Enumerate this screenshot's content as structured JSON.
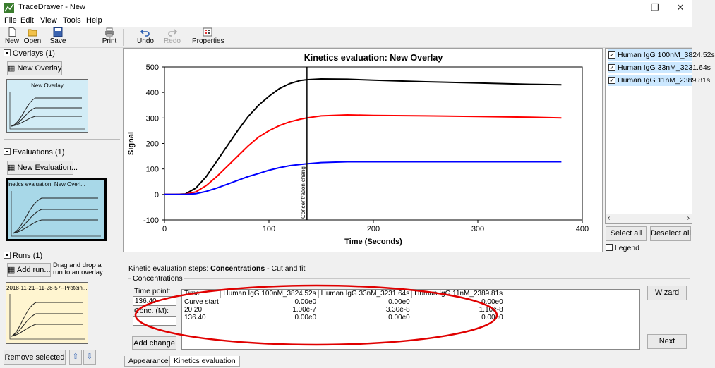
{
  "window": {
    "title": "TraceDrawer - New"
  },
  "menu": [
    "File",
    "Edit",
    "View",
    "Tools",
    "Help"
  ],
  "toolbar": {
    "new": "New",
    "open": "Open",
    "save": "Save",
    "print": "Print",
    "undo": "Undo",
    "redo": "Redo",
    "properties": "Properties"
  },
  "overlays": {
    "header": "Overlays (1)",
    "button": "New Overlay",
    "thumb_label": "New Overlay"
  },
  "evaluations": {
    "header": "Evaluations (1)",
    "button": "New Evaluation...",
    "thumb_label": "inetics evaluation: New Overl..."
  },
  "runs": {
    "header": "Runs (1)",
    "button": "Add run...",
    "hint_line1": "Drag and drop a",
    "hint_line2": "run to an overlay",
    "thumb_label": "2018-11-21--11-28-57--Protein..."
  },
  "bottom_left": {
    "remove": "Remove selected"
  },
  "right_panel": {
    "items": [
      {
        "label": "Human IgG 100nM_3824.52s",
        "checked": true
      },
      {
        "label": "Human IgG 33nM_3231.64s",
        "checked": true
      },
      {
        "label": "Human IgG 11nM_2389.81s",
        "checked": true
      }
    ],
    "select_all": "Select all",
    "deselect_all": "Deselect all",
    "legend": "Legend"
  },
  "chart_data": {
    "type": "line",
    "title": "Kinetics evaluation: New Overlay",
    "xlabel": "Time (Seconds)",
    "ylabel": "Signal",
    "xlim": [
      0,
      400
    ],
    "ylim": [
      -100,
      500
    ],
    "xticks": [
      0,
      100,
      200,
      300,
      400
    ],
    "yticks": [
      -100,
      0,
      100,
      200,
      300,
      400,
      500
    ],
    "annotation": {
      "x": 136.4,
      "label": "Concentration chang"
    },
    "grid": false,
    "series": [
      {
        "name": "Human IgG 100nM_3824.52s",
        "color": "#000000",
        "x": [
          0,
          10,
          20,
          30,
          40,
          50,
          60,
          70,
          80,
          90,
          100,
          110,
          120,
          130,
          136,
          150,
          175,
          200,
          250,
          300,
          350,
          380
        ],
        "y": [
          0,
          0,
          2,
          25,
          70,
          130,
          190,
          250,
          305,
          350,
          385,
          415,
          435,
          447,
          450,
          453,
          452,
          448,
          442,
          437,
          432,
          430
        ]
      },
      {
        "name": "Human IgG 33nM_3231.64s",
        "color": "#ff0000",
        "x": [
          0,
          10,
          20,
          30,
          40,
          50,
          60,
          70,
          80,
          90,
          100,
          110,
          120,
          130,
          136,
          150,
          175,
          200,
          250,
          300,
          350,
          380
        ],
        "y": [
          0,
          0,
          1,
          10,
          35,
          70,
          110,
          150,
          190,
          225,
          250,
          270,
          285,
          295,
          300,
          308,
          312,
          310,
          308,
          306,
          303,
          300
        ]
      },
      {
        "name": "Human IgG 11nM_2389.81s",
        "color": "#0000ff",
        "x": [
          0,
          10,
          20,
          30,
          40,
          50,
          60,
          70,
          80,
          90,
          100,
          110,
          120,
          130,
          136,
          150,
          175,
          200,
          250,
          300,
          350,
          380
        ],
        "y": [
          0,
          0,
          0,
          3,
          12,
          25,
          40,
          55,
          70,
          82,
          95,
          105,
          113,
          118,
          120,
          125,
          128,
          128,
          128,
          128,
          128,
          128
        ]
      }
    ]
  },
  "kinetic_steps": {
    "label": "Kinetic evaluation steps:",
    "current": "Concentrations",
    "sep": "-",
    "next": "Cut and fit"
  },
  "concentrations": {
    "group": "Concentrations",
    "time_point_label": "Time point:",
    "time_point_value": "136.40",
    "conc_label": "Conc. (M):",
    "conc_value": "",
    "add_change": "Add change",
    "table": {
      "headers": [
        "Time",
        "Human IgG 100nM_3824.52s",
        "Human IgG 33nM_3231.64s",
        "Human IgG 11nM_2389.81s"
      ],
      "rows": [
        [
          "Curve start",
          "0.00e0",
          "0.00e0",
          "0.00e0"
        ],
        [
          "20.20",
          "1.00e-7",
          "3.30e-8",
          "1.10e-8"
        ],
        [
          "136.40",
          "0.00e0",
          "0.00e0",
          "0.00e0"
        ]
      ]
    },
    "wizard": "Wizard",
    "next": "Next"
  },
  "tabs": [
    "Appearance",
    "Kinetics evaluation"
  ]
}
